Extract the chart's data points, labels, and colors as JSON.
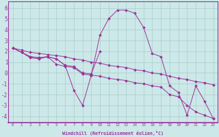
{
  "xlabel": "Windchill (Refroidissement éolien,°C)",
  "background_color": "#cce8e8",
  "grid_color": "#aacccc",
  "line_color": "#993399",
  "xlim": [
    -0.5,
    23.5
  ],
  "ylim": [
    -4.6,
    6.6
  ],
  "xticks": [
    0,
    1,
    2,
    3,
    4,
    5,
    6,
    7,
    8,
    9,
    10,
    11,
    12,
    13,
    14,
    15,
    16,
    17,
    18,
    19,
    20,
    21,
    22,
    23
  ],
  "yticks": [
    -4,
    -3,
    -2,
    -1,
    0,
    1,
    2,
    3,
    4,
    5,
    6
  ],
  "series": [
    {
      "x": [
        0,
        1,
        2,
        3,
        4,
        5,
        6,
        7,
        8,
        9,
        10,
        11,
        12,
        13,
        14,
        15,
        16,
        17,
        18,
        19,
        20,
        21,
        22,
        23
      ],
      "y": [
        2.3,
        1.9,
        1.5,
        1.4,
        1.5,
        1.3,
        0.7,
        -1.6,
        -3.0,
        -0.2,
        3.5,
        5.0,
        5.8,
        5.8,
        5.5,
        4.2,
        1.8,
        1.5,
        -1.2,
        -1.8,
        -3.9,
        -1.2,
        -2.6,
        -4.2
      ]
    },
    {
      "x": [
        0,
        1,
        2,
        3,
        4,
        5,
        6,
        7,
        8,
        9,
        10
      ],
      "y": [
        2.3,
        1.9,
        1.5,
        1.4,
        1.5,
        1.3,
        0.7,
        0.6,
        0.0,
        -0.1,
        2.0
      ]
    },
    {
      "x": [
        0,
        1,
        2,
        3,
        4,
        5,
        6,
        7,
        8,
        9,
        10,
        11,
        12,
        13,
        14,
        15,
        16,
        17,
        18,
        19,
        20,
        21,
        22,
        23
      ],
      "y": [
        2.3,
        1.9,
        1.4,
        1.3,
        1.5,
        0.8,
        0.6,
        0.5,
        -0.1,
        -0.2,
        -0.3,
        -0.5,
        -0.6,
        -0.7,
        -0.9,
        -1.0,
        -1.2,
        -1.3,
        -2.0,
        -2.2,
        -3.0,
        -3.6,
        -3.9,
        -4.2
      ]
    },
    {
      "x": [
        0,
        1,
        2,
        3,
        4,
        5,
        6,
        7,
        8,
        9,
        10,
        11,
        12,
        13,
        14,
        15,
        16,
        17,
        18,
        19,
        20,
        21,
        22,
        23
      ],
      "y": [
        2.3,
        2.1,
        1.9,
        1.8,
        1.7,
        1.6,
        1.5,
        1.3,
        1.2,
        1.0,
        0.9,
        0.7,
        0.6,
        0.5,
        0.3,
        0.2,
        0.0,
        -0.1,
        -0.3,
        -0.5,
        -0.6,
        -0.8,
        -0.9,
        -1.1
      ]
    }
  ]
}
